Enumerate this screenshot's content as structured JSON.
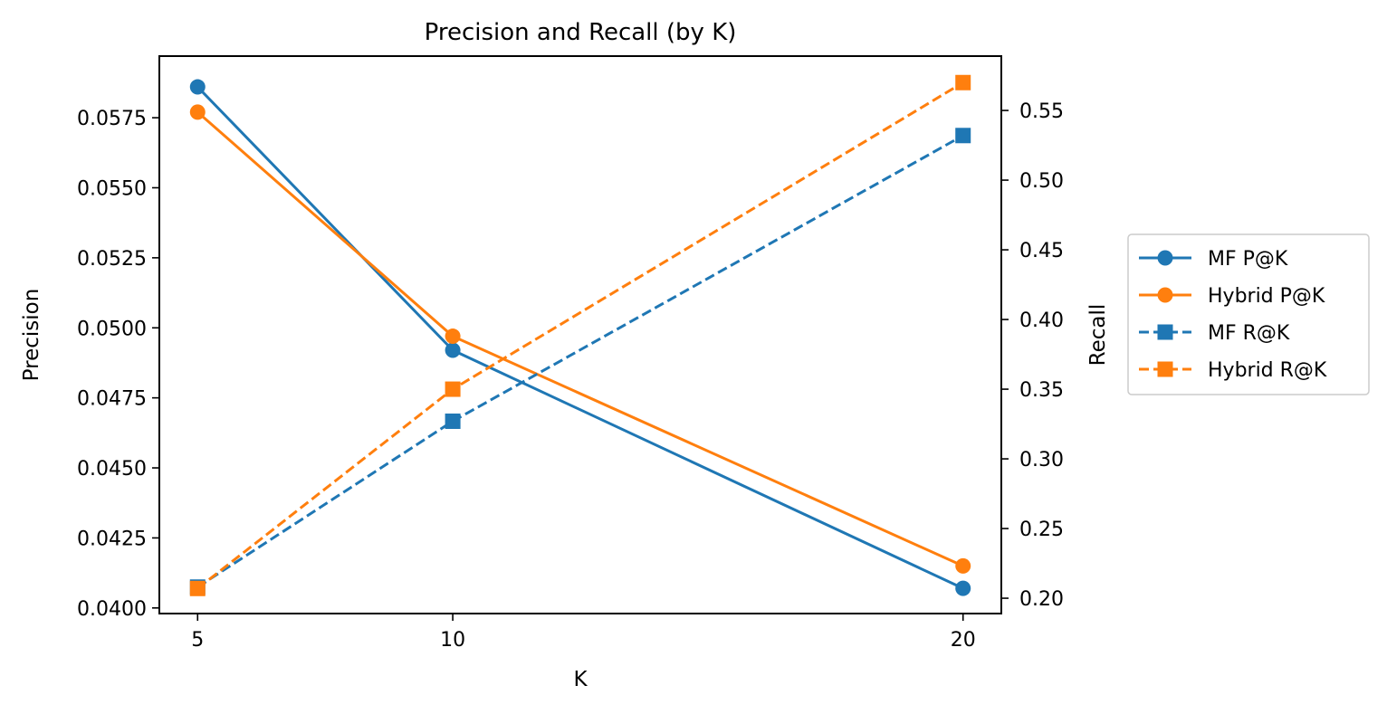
{
  "chart_data": {
    "type": "line",
    "title": "Precision and Recall (by K)",
    "xlabel": "K",
    "ylabel_left": "Precision",
    "ylabel_right": "Recall",
    "x": [
      5,
      10,
      20
    ],
    "x_ticks": [
      "5",
      "10",
      "20"
    ],
    "xlim": [
      4.25,
      20.75
    ],
    "ylim_left": [
      0.0398,
      0.0597
    ],
    "ylim_right": [
      0.189,
      0.589
    ],
    "y_ticks_left": [
      "0.0400",
      "0.0425",
      "0.0450",
      "0.0475",
      "0.0500",
      "0.0525",
      "0.0550",
      "0.0575"
    ],
    "y_ticks_right": [
      "0.20",
      "0.25",
      "0.30",
      "0.35",
      "0.40",
      "0.45",
      "0.50",
      "0.55"
    ],
    "grid": false,
    "legend_position": "outside-right",
    "series": [
      {
        "name": "MF P@K",
        "axis": "left",
        "values": [
          0.0586,
          0.0492,
          0.0407
        ],
        "color": "#1f77b4",
        "linestyle": "solid",
        "marker": "circle"
      },
      {
        "name": "Hybrid P@K",
        "axis": "left",
        "values": [
          0.0577,
          0.0497,
          0.0415
        ],
        "color": "#ff7f0e",
        "linestyle": "solid",
        "marker": "circle"
      },
      {
        "name": "MF R@K",
        "axis": "right",
        "values": [
          0.208,
          0.327,
          0.532
        ],
        "color": "#1f77b4",
        "linestyle": "dashed",
        "marker": "square"
      },
      {
        "name": "Hybrid R@K",
        "axis": "right",
        "values": [
          0.207,
          0.35,
          0.57
        ],
        "color": "#ff7f0e",
        "linestyle": "dashed",
        "marker": "square"
      }
    ]
  }
}
